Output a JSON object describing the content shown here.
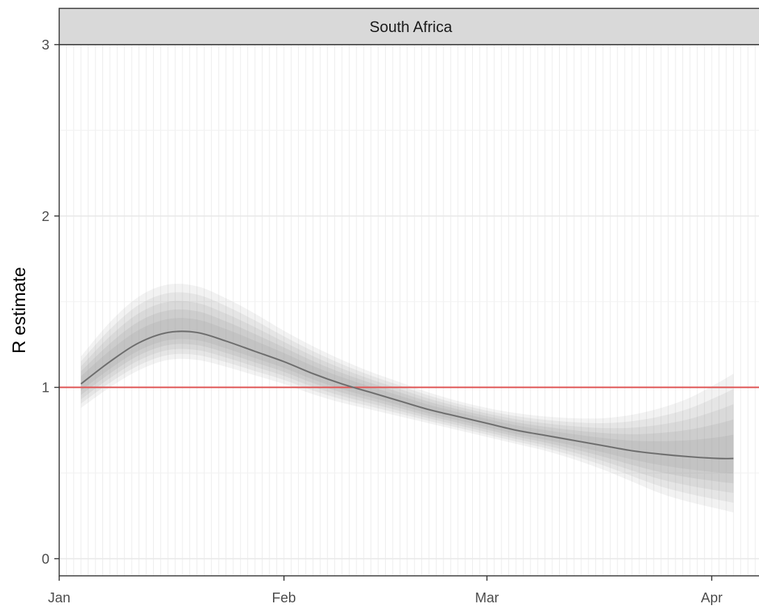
{
  "chart_data": {
    "type": "line",
    "facet_title": "South Africa",
    "ylabel": "R estimate",
    "xlabel": "",
    "x_ticks": [
      "Jan",
      "Feb",
      "Mar",
      "Apr"
    ],
    "y_ticks": [
      "0",
      "1",
      "2",
      "3"
    ],
    "ylim": [
      -0.1,
      3.0
    ],
    "xlim": [
      "2021-01-01",
      "2021-04-08"
    ],
    "grid": true,
    "reference_line": {
      "y": 1,
      "color": "#e05a5a"
    },
    "series": [
      {
        "x": [
          "2021-01-04",
          "2021-01-08",
          "2021-01-12",
          "2021-01-16",
          "2021-01-20",
          "2021-01-24",
          "2021-01-28",
          "2021-02-01",
          "2021-02-05",
          "2021-02-09",
          "2021-02-13",
          "2021-02-17",
          "2021-02-21",
          "2021-02-25",
          "2021-03-01",
          "2021-03-05",
          "2021-03-09",
          "2021-03-13",
          "2021-03-17",
          "2021-03-21",
          "2021-03-25",
          "2021-03-29",
          "2021-04-02",
          "2021-04-04"
        ],
        "median": [
          1.02,
          1.15,
          1.26,
          1.32,
          1.32,
          1.27,
          1.21,
          1.15,
          1.08,
          1.02,
          0.97,
          0.92,
          0.87,
          0.83,
          0.79,
          0.75,
          0.72,
          0.69,
          0.66,
          0.63,
          0.61,
          0.595,
          0.585,
          0.585
        ],
        "lower90": [
          0.88,
          1.0,
          1.1,
          1.16,
          1.16,
          1.12,
          1.07,
          1.02,
          0.96,
          0.91,
          0.87,
          0.83,
          0.79,
          0.75,
          0.71,
          0.67,
          0.63,
          0.58,
          0.52,
          0.45,
          0.38,
          0.33,
          0.29,
          0.27
        ],
        "upper90": [
          1.18,
          1.38,
          1.53,
          1.6,
          1.59,
          1.52,
          1.43,
          1.33,
          1.24,
          1.16,
          1.09,
          1.03,
          0.97,
          0.92,
          0.88,
          0.85,
          0.83,
          0.82,
          0.82,
          0.84,
          0.88,
          0.94,
          1.03,
          1.08
        ],
        "color": "#6e6e6e",
        "band_color": "#9a9a9a"
      }
    ]
  }
}
